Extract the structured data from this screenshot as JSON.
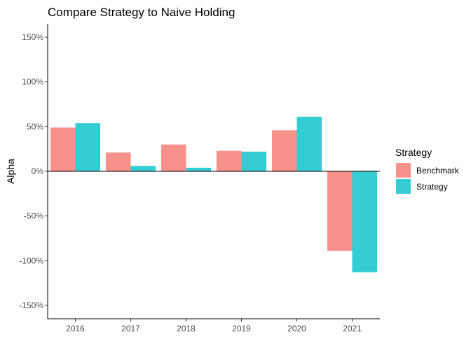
{
  "chart_data": {
    "type": "bar",
    "title": "Compare Strategy to Naive Holding",
    "xlabel": "",
    "ylabel": "Alpha",
    "categories": [
      "2016",
      "2017",
      "2018",
      "2019",
      "2020",
      "2021"
    ],
    "series": [
      {
        "name": "Benchmark",
        "color": "#f8918a",
        "values": [
          0.49,
          0.21,
          0.3,
          0.23,
          0.46,
          -0.89
        ]
      },
      {
        "name": "Strategy",
        "color": "#34cdd3",
        "values": [
          0.54,
          0.06,
          0.04,
          0.22,
          0.61,
          -1.13
        ]
      }
    ],
    "ylim": [
      -1.65,
      1.65
    ],
    "yticks": [
      -1.5,
      -1.0,
      -0.5,
      0.0,
      0.5,
      1.0,
      1.5
    ],
    "ytick_labels": [
      "-150%",
      "-100%",
      "-50%",
      "0%",
      "50%",
      "100%",
      "150%"
    ],
    "legend": {
      "title": "Strategy",
      "position": "right"
    },
    "grid": false
  }
}
